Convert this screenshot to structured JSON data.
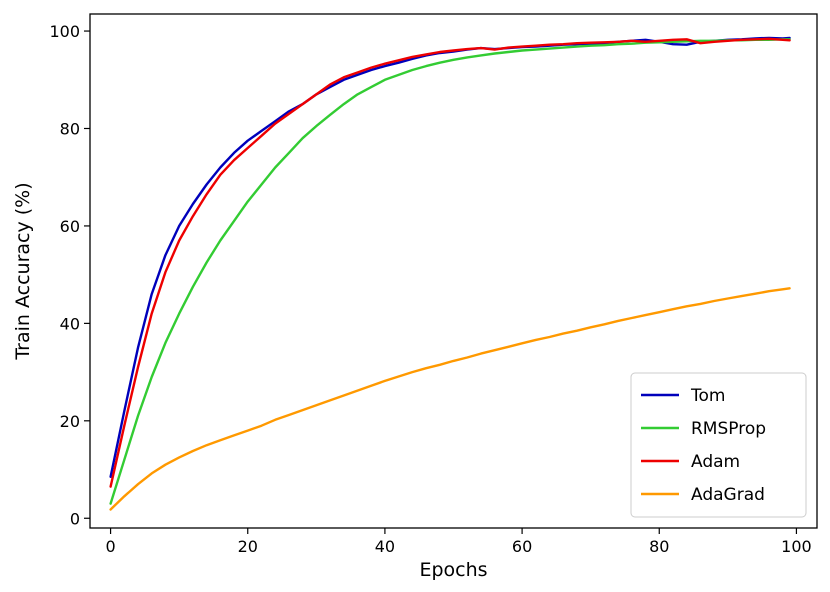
{
  "chart_data": {
    "type": "line",
    "title": "",
    "xlabel": "Epochs",
    "ylabel": "Train Accuracy (%)",
    "xlim": [
      -3,
      103
    ],
    "ylim": [
      -2,
      103.5
    ],
    "xticks": [
      0,
      20,
      40,
      60,
      80,
      100
    ],
    "yticks": [
      0,
      20,
      40,
      60,
      80,
      100
    ],
    "grid": false,
    "legend_position": "bottom-right",
    "x": [
      0,
      2,
      4,
      6,
      8,
      10,
      12,
      14,
      16,
      18,
      20,
      22,
      24,
      26,
      28,
      30,
      32,
      34,
      36,
      38,
      40,
      42,
      44,
      46,
      48,
      50,
      52,
      54,
      56,
      58,
      60,
      62,
      64,
      66,
      68,
      70,
      72,
      74,
      76,
      78,
      80,
      82,
      84,
      86,
      88,
      90,
      92,
      94,
      96,
      98,
      99
    ],
    "series": [
      {
        "name": "Tom",
        "color": "#0000bb",
        "values": [
          8.5,
          22,
          35,
          46,
          54,
          60,
          64.5,
          68.5,
          72,
          75,
          77.5,
          79.5,
          81.5,
          83.5,
          85,
          87,
          88.5,
          90,
          91,
          92,
          92.8,
          93.5,
          94.3,
          95,
          95.5,
          95.8,
          96.2,
          96.5,
          96.3,
          96.5,
          96.7,
          96.8,
          97,
          97.2,
          97.3,
          97.4,
          97.5,
          97.8,
          98,
          98.2,
          97.8,
          97.3,
          97.2,
          97.8,
          98,
          98.2,
          98.3,
          98.5,
          98.6,
          98.5,
          98.6
        ]
      },
      {
        "name": "RMSProp",
        "color": "#33cc33",
        "values": [
          3,
          12,
          21,
          29,
          36,
          42,
          47.5,
          52.5,
          57,
          61,
          65,
          68.5,
          72,
          75,
          78,
          80.5,
          82.8,
          85,
          87,
          88.5,
          90,
          91,
          92,
          92.8,
          93.5,
          94.1,
          94.6,
          95,
          95.4,
          95.7,
          96,
          96.2,
          96.4,
          96.6,
          96.8,
          97,
          97.1,
          97.3,
          97.4,
          97.6,
          97.7,
          97.8,
          97.9,
          98,
          98,
          98.1,
          98.1,
          98.2,
          98.2,
          98.3,
          98.3
        ]
      },
      {
        "name": "Adam",
        "color": "#ee0000",
        "values": [
          6.5,
          19,
          31,
          42,
          50.5,
          57,
          62,
          66.5,
          70.5,
          73.5,
          76,
          78.5,
          81,
          83,
          85,
          87,
          89,
          90.5,
          91.5,
          92.5,
          93.3,
          94,
          94.7,
          95.2,
          95.7,
          96,
          96.3,
          96.5,
          96.2,
          96.6,
          96.8,
          97,
          97.2,
          97.3,
          97.5,
          97.6,
          97.7,
          97.8,
          98,
          97.8,
          98,
          98.2,
          98.3,
          97.5,
          97.8,
          98,
          98.2,
          98.3,
          98.4,
          98.2,
          98.1
        ]
      },
      {
        "name": "AdaGrad",
        "color": "#ff9900",
        "values": [
          1.8,
          4.5,
          7,
          9.2,
          11,
          12.5,
          13.8,
          15,
          16,
          17,
          18,
          19,
          20.2,
          21.2,
          22.2,
          23.2,
          24.2,
          25.2,
          26.2,
          27.2,
          28.2,
          29.1,
          30,
          30.8,
          31.5,
          32.3,
          33,
          33.8,
          34.5,
          35.2,
          35.9,
          36.6,
          37.2,
          37.9,
          38.5,
          39.2,
          39.8,
          40.5,
          41.1,
          41.7,
          42.3,
          42.9,
          43.5,
          44,
          44.6,
          45.1,
          45.6,
          46.1,
          46.6,
          47,
          47.2
        ]
      }
    ]
  }
}
